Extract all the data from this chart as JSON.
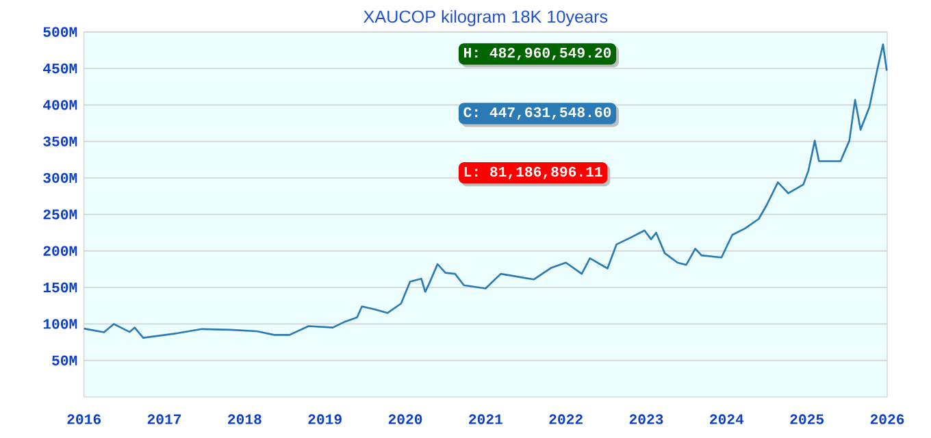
{
  "chart_data": {
    "type": "line",
    "title": "XAUCOP kilogram 18K 10years",
    "annotations": [
      "H: 482,960,549.20",
      "C: 447,631,548.60",
      "L: 81,186,896.11"
    ],
    "series": [
      {
        "color": "#2a7ab5",
        "x": [
          "2016-01-01",
          "2016-04-01",
          "2016-05-16",
          "2016-07-27",
          "2016-08-19",
          "2016-09-27",
          "2017-03-04",
          "2017-06-21",
          "2017-10-27",
          "2018-02-25",
          "2018-05-16",
          "2018-07-24",
          "2018-10-19",
          "2019-02-06",
          "2019-04-01",
          "2019-05-27",
          "2019-06-18",
          "2019-08-15",
          "2019-10-12",
          "2019-12-13",
          "2020-01-23",
          "2020-03-14",
          "2020-04-01",
          "2020-04-20",
          "2020-05-27",
          "2020-07-02",
          "2020-08-15",
          "2020-09-24",
          "2021-01-01",
          "2021-03-11",
          "2021-08-08",
          "2021-10-27",
          "2022-01-01",
          "2022-03-14",
          "2022-04-20",
          "2022-07-09",
          "2022-08-19",
          "2022-10-27",
          "2022-12-24",
          "2023-01-23",
          "2023-02-15",
          "2023-03-26",
          "2023-05-23",
          "2023-07-02",
          "2023-08-12",
          "2023-09-09",
          "2023-12-09",
          "2024-01-27",
          "2024-03-26",
          "2024-05-27",
          "2024-07-02",
          "2024-08-22",
          "2024-10-08",
          "2024-12-16",
          "2025-01-08",
          "2025-02-06",
          "2025-02-25",
          "2025-04-16",
          "2025-06-03",
          "2025-07-13",
          "2025-08-08",
          "2025-09-02",
          "2025-10-12",
          "2025-11-18",
          "2025-12-13",
          "2025-12-30"
        ],
        "values": [
          93.6,
          88.6,
          99.9,
          89,
          95,
          81,
          87.4,
          93,
          92,
          90,
          85,
          85,
          97,
          95,
          103,
          109,
          124,
          120,
          115,
          128,
          158,
          162,
          144,
          156,
          182,
          170,
          168.6,
          153,
          148.6,
          168.6,
          161,
          177,
          184,
          168.6,
          190,
          176,
          209,
          219,
          228,
          216,
          225,
          197,
          184,
          181,
          203,
          194,
          191,
          222,
          231,
          244,
          263,
          294,
          279,
          291,
          310,
          351,
          323,
          323,
          323,
          351,
          407,
          366,
          397,
          450,
          483,
          447
        ]
      }
    ],
    "xlim": [
      "2016-01-01",
      "2026-01-01"
    ],
    "xticks": [
      {
        "value": "2016-01-01",
        "label": "2016"
      },
      {
        "value": "2017-01-01",
        "label": "2017"
      },
      {
        "value": "2018-01-01",
        "label": "2018"
      },
      {
        "value": "2019-01-01",
        "label": "2019"
      },
      {
        "value": "2020-01-01",
        "label": "2020"
      },
      {
        "value": "2021-01-01",
        "label": "2021"
      },
      {
        "value": "2022-01-01",
        "label": "2022"
      },
      {
        "value": "2023-01-01",
        "label": "2023"
      },
      {
        "value": "2024-01-01",
        "label": "2024"
      },
      {
        "value": "2025-01-01",
        "label": "2025"
      },
      {
        "value": "2026-01-01",
        "label": "2026"
      }
    ],
    "ylim": [
      0,
      500
    ],
    "yticks": [
      {
        "value": 50,
        "label": "50M"
      },
      {
        "value": 100,
        "label": "100M"
      },
      {
        "value": 150,
        "label": "150M"
      },
      {
        "value": 200,
        "label": "200M"
      },
      {
        "value": 250,
        "label": "250M"
      },
      {
        "value": 300,
        "label": "300M"
      },
      {
        "value": 350,
        "label": "350M"
      },
      {
        "value": 400,
        "label": "400M"
      },
      {
        "value": 450,
        "label": "450M"
      },
      {
        "value": 500,
        "label": "500M"
      }
    ],
    "grid": "y"
  }
}
